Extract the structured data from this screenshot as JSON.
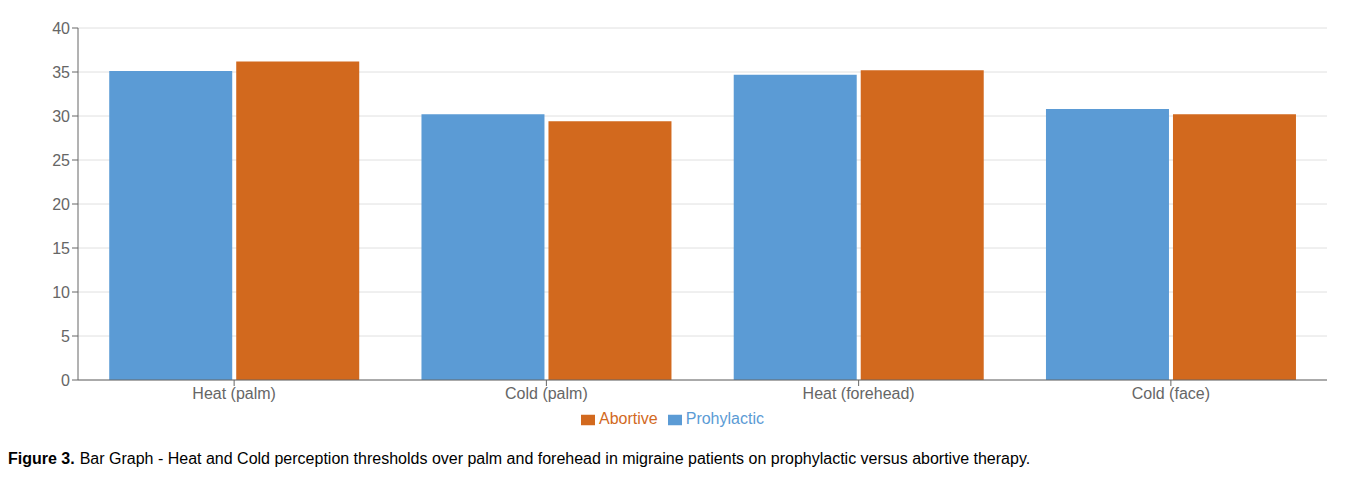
{
  "chart_data": {
    "type": "bar",
    "title": "Figure 3.",
    "subtitle": "Bar Graph - Heat and Cold perception thresholds over palm and forehead in migraine patients on prophylactic versus abortive therapy.",
    "categories": [
      "Heat (palm)",
      "Cold (palm)",
      "Heat (forehead)",
      "Cold (face)"
    ],
    "series": [
      {
        "name": "Prohylactic",
        "color": "#5B9BD5",
        "values": [
          35.1,
          30.2,
          34.7,
          30.8
        ]
      },
      {
        "name": "Abortive",
        "color": "#D2691E",
        "values": [
          36.2,
          29.4,
          35.2,
          30.2
        ]
      }
    ],
    "ylim": [
      0,
      40
    ],
    "yticks": [
      0,
      5,
      10,
      15,
      20,
      25,
      30,
      35,
      40
    ],
    "grid": true,
    "legend": "bottom"
  }
}
